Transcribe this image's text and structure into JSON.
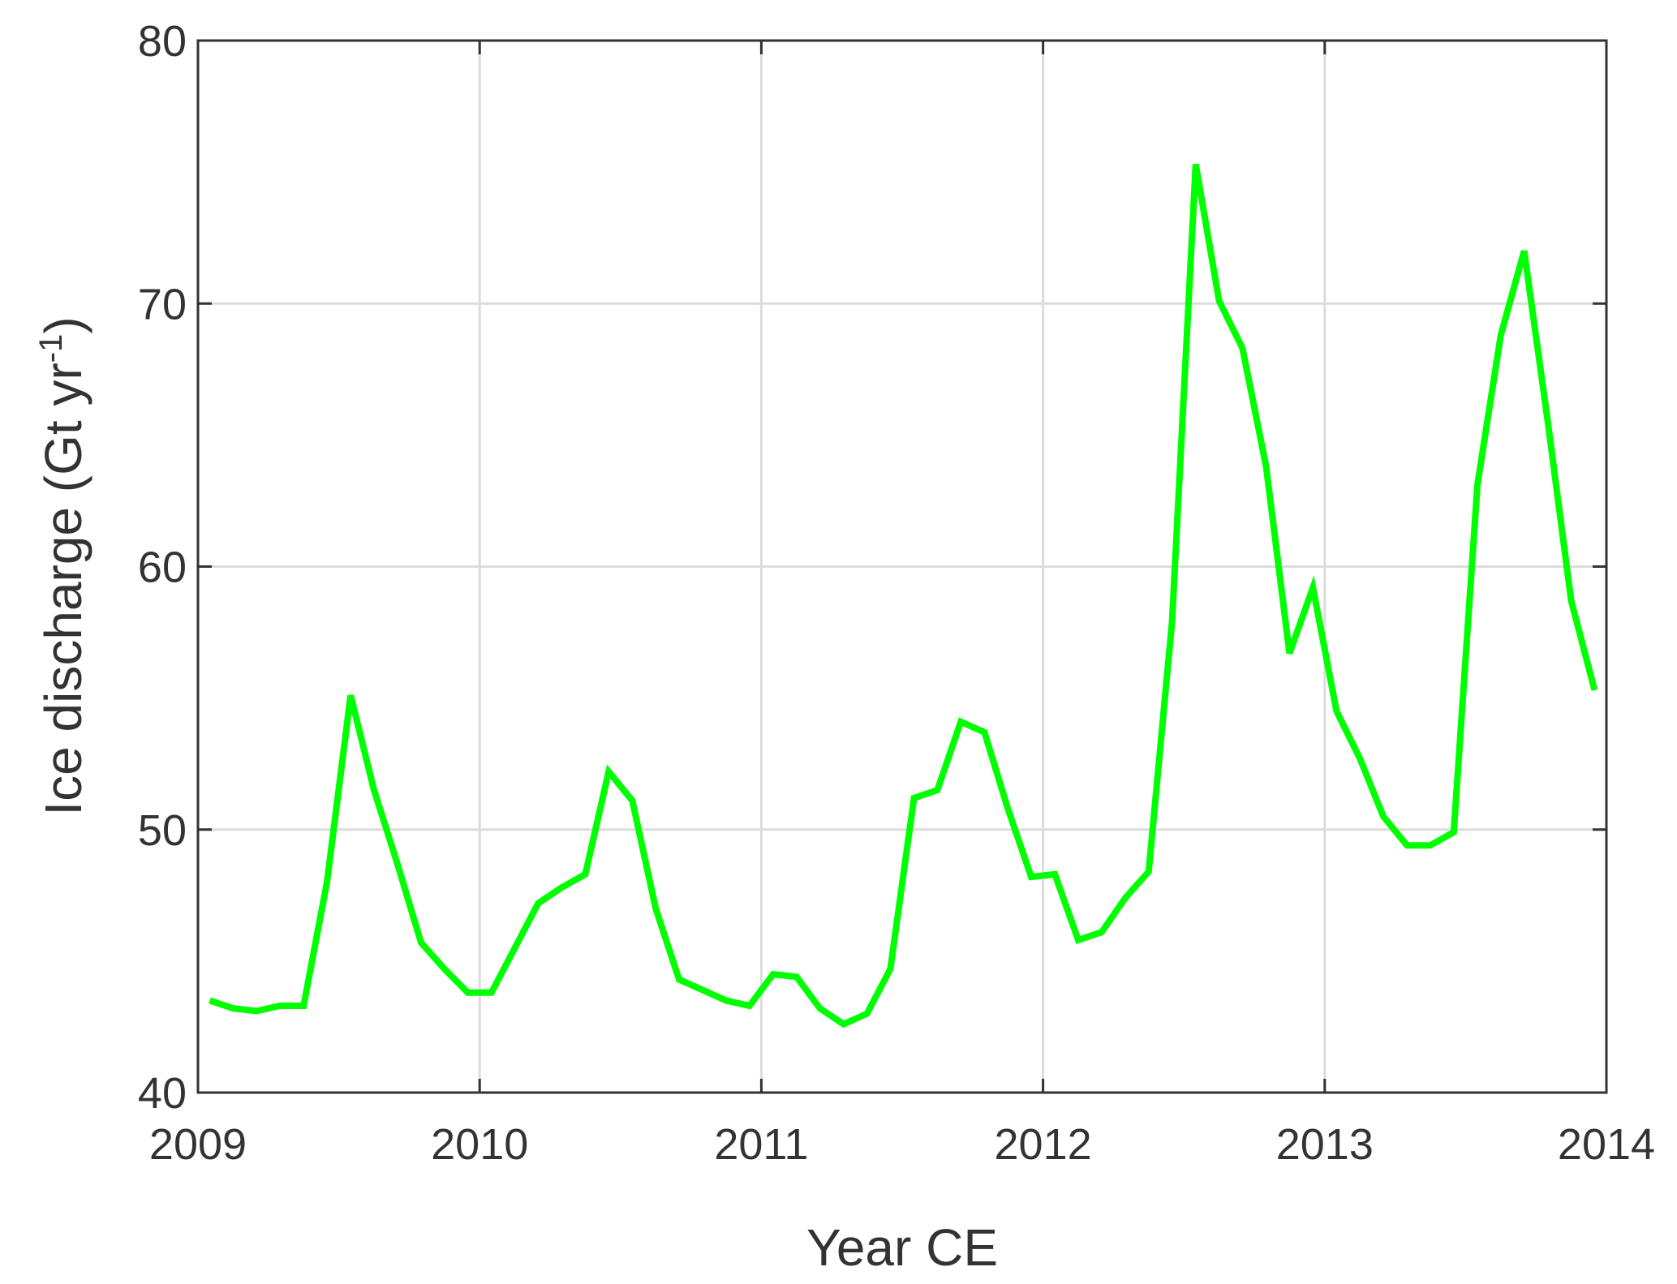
{
  "chart_data": {
    "type": "line",
    "xlabel": "Year CE",
    "ylabel": {
      "text": "Ice discharge (Gt yr",
      "superscript": "-1",
      "suffix": ")"
    },
    "x": [
      2009.042,
      2009.125,
      2009.208,
      2009.292,
      2009.375,
      2009.458,
      2009.542,
      2009.625,
      2009.708,
      2009.792,
      2009.875,
      2009.958,
      2010.042,
      2010.125,
      2010.208,
      2010.292,
      2010.375,
      2010.458,
      2010.542,
      2010.625,
      2010.708,
      2010.792,
      2010.875,
      2010.958,
      2011.042,
      2011.125,
      2011.208,
      2011.292,
      2011.375,
      2011.458,
      2011.542,
      2011.625,
      2011.708,
      2011.792,
      2011.875,
      2011.958,
      2012.042,
      2012.125,
      2012.208,
      2012.292,
      2012.375,
      2012.458,
      2012.542,
      2012.625,
      2012.708,
      2012.792,
      2012.875,
      2012.958,
      2013.042,
      2013.125,
      2013.208,
      2013.292,
      2013.375,
      2013.458,
      2013.542,
      2013.625,
      2013.708,
      2013.792,
      2013.875,
      2013.958
    ],
    "series": [
      {
        "name": "Ice discharge",
        "color": "#00ff00",
        "values": [
          43.5,
          43.2,
          43.1,
          43.3,
          43.3,
          48.0,
          55.1,
          51.5,
          48.7,
          45.7,
          44.7,
          43.8,
          43.8,
          45.5,
          47.2,
          47.8,
          48.3,
          52.2,
          51.1,
          47.0,
          44.3,
          43.9,
          43.5,
          43.3,
          44.5,
          44.4,
          43.2,
          42.6,
          43.0,
          44.7,
          51.2,
          51.5,
          54.1,
          53.7,
          50.8,
          48.2,
          48.3,
          45.8,
          46.1,
          47.4,
          48.4,
          57.9,
          75.3,
          70.1,
          68.3,
          63.8,
          56.7,
          59.2,
          54.5,
          52.7,
          50.5,
          49.4,
          49.4,
          49.9,
          63.1,
          68.8,
          72.0,
          65.5,
          58.7,
          55.3
        ]
      }
    ],
    "xlim": [
      2009,
      2014
    ],
    "xticks": [
      2009,
      2010,
      2011,
      2012,
      2013,
      2014
    ],
    "ylim": [
      40,
      80
    ],
    "yticks": [
      40,
      50,
      60,
      70,
      80
    ],
    "grid": true
  }
}
